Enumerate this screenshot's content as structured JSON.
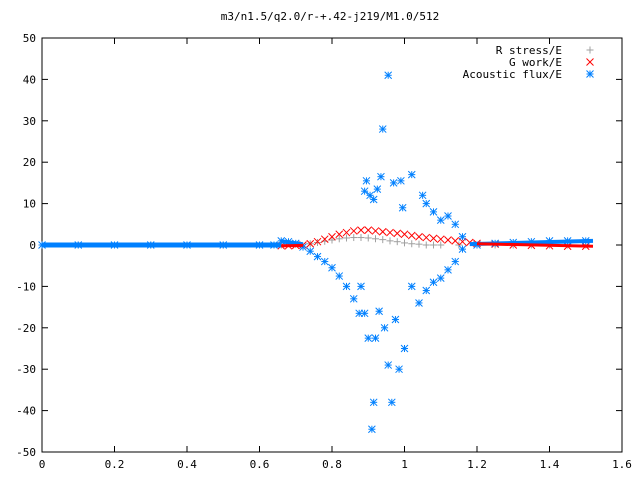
{
  "chart_data": {
    "type": "scatter",
    "title": "m3/n1.5/q2.0/r-+.42-j219/M1.0/512",
    "xlim": [
      0,
      1.6
    ],
    "ylim": [
      -50,
      50
    ],
    "x_ticks": [
      "0",
      "0.2",
      "0.4",
      "0.6",
      "0.8",
      "1",
      "1.2",
      "1.4",
      "1.6"
    ],
    "y_ticks": [
      "50",
      "40",
      "30",
      "20",
      "10",
      "0",
      "-10",
      "-20",
      "-30",
      "-40",
      "-50"
    ],
    "legend_position": "top-right",
    "grid": false,
    "series": [
      {
        "name": "R stress/E",
        "color": "#a0a0a0",
        "marker": "plus",
        "points": [
          [
            0.0,
            0.0
          ],
          [
            0.1,
            0.0
          ],
          [
            0.2,
            0.0
          ],
          [
            0.3,
            0.0
          ],
          [
            0.4,
            0.0
          ],
          [
            0.5,
            0.0
          ],
          [
            0.6,
            0.0
          ],
          [
            0.66,
            0.0
          ],
          [
            0.7,
            0.1
          ],
          [
            0.74,
            0.3
          ],
          [
            0.76,
            0.6
          ],
          [
            0.78,
            0.9
          ],
          [
            0.8,
            1.2
          ],
          [
            0.82,
            1.5
          ],
          [
            0.84,
            1.7
          ],
          [
            0.86,
            1.8
          ],
          [
            0.88,
            1.8
          ],
          [
            0.9,
            1.7
          ],
          [
            0.92,
            1.5
          ],
          [
            0.94,
            1.3
          ],
          [
            0.96,
            1.0
          ],
          [
            0.98,
            0.8
          ],
          [
            1.0,
            0.5
          ],
          [
            1.02,
            0.3
          ],
          [
            1.04,
            0.2
          ],
          [
            1.06,
            0.0
          ],
          [
            1.08,
            0.0
          ],
          [
            1.1,
            0.0
          ],
          [
            1.15,
            0.0
          ],
          [
            1.2,
            0.0
          ],
          [
            1.25,
            0.0
          ],
          [
            1.3,
            0.0
          ],
          [
            1.35,
            0.0
          ],
          [
            1.4,
            0.0
          ],
          [
            1.45,
            0.0
          ],
          [
            1.5,
            0.0
          ]
        ]
      },
      {
        "name": "G work/E",
        "color": "#ff0000",
        "marker": "cross",
        "points": [
          [
            0.66,
            -0.2
          ],
          [
            0.68,
            -0.2
          ],
          [
            0.7,
            -0.1
          ],
          [
            0.72,
            0.0
          ],
          [
            0.74,
            0.3
          ],
          [
            0.76,
            0.8
          ],
          [
            0.78,
            1.4
          ],
          [
            0.8,
            2.0
          ],
          [
            0.82,
            2.6
          ],
          [
            0.84,
            3.0
          ],
          [
            0.86,
            3.4
          ],
          [
            0.88,
            3.6
          ],
          [
            0.9,
            3.6
          ],
          [
            0.92,
            3.4
          ],
          [
            0.94,
            3.2
          ],
          [
            0.96,
            3.0
          ],
          [
            0.98,
            2.8
          ],
          [
            1.0,
            2.6
          ],
          [
            1.02,
            2.3
          ],
          [
            1.04,
            2.0
          ],
          [
            1.06,
            1.8
          ],
          [
            1.08,
            1.6
          ],
          [
            1.1,
            1.4
          ],
          [
            1.12,
            1.2
          ],
          [
            1.14,
            1.0
          ],
          [
            1.16,
            0.8
          ],
          [
            1.18,
            0.6
          ],
          [
            1.2,
            0.4
          ],
          [
            1.25,
            0.2
          ],
          [
            1.3,
            0.0
          ],
          [
            1.35,
            -0.1
          ],
          [
            1.4,
            -0.2
          ],
          [
            1.45,
            -0.3
          ],
          [
            1.5,
            -0.3
          ]
        ]
      },
      {
        "name": "Acoustic flux/E",
        "color": "#0080ff",
        "marker": "star",
        "points": [
          [
            0.0,
            0.0
          ],
          [
            0.1,
            0.0
          ],
          [
            0.2,
            0.0
          ],
          [
            0.3,
            0.0
          ],
          [
            0.4,
            0.0
          ],
          [
            0.5,
            0.0
          ],
          [
            0.6,
            0.0
          ],
          [
            0.64,
            0.0
          ],
          [
            0.66,
            1.0
          ],
          [
            0.68,
            0.8
          ],
          [
            0.7,
            0.4
          ],
          [
            0.72,
            -0.5
          ],
          [
            0.74,
            -1.5
          ],
          [
            0.76,
            -2.8
          ],
          [
            0.78,
            -4.0
          ],
          [
            0.8,
            -5.5
          ],
          [
            0.82,
            -7.5
          ],
          [
            0.84,
            -10.0
          ],
          [
            0.86,
            -13.0
          ],
          [
            0.875,
            -16.5
          ],
          [
            0.89,
            13.0
          ],
          [
            0.895,
            15.5
          ],
          [
            0.905,
            12.0
          ],
          [
            0.915,
            11.0
          ],
          [
            0.925,
            13.5
          ],
          [
            0.935,
            16.5
          ],
          [
            0.94,
            28.0
          ],
          [
            0.955,
            41.0
          ],
          [
            0.97,
            15.0
          ],
          [
            0.99,
            15.5
          ],
          [
            0.995,
            9.0
          ],
          [
            1.02,
            17.0
          ],
          [
            1.05,
            12.0
          ],
          [
            1.06,
            10.0
          ],
          [
            1.08,
            8.0
          ],
          [
            1.1,
            6.0
          ],
          [
            1.12,
            7.0
          ],
          [
            1.14,
            5.0
          ],
          [
            1.16,
            2.0
          ],
          [
            0.88,
            -10.0
          ],
          [
            0.89,
            -16.5
          ],
          [
            0.9,
            -22.5
          ],
          [
            0.91,
            -44.5
          ],
          [
            0.915,
            -38.0
          ],
          [
            0.92,
            -22.5
          ],
          [
            0.93,
            -16.0
          ],
          [
            0.945,
            -20.0
          ],
          [
            0.955,
            -29.0
          ],
          [
            0.965,
            -38.0
          ],
          [
            0.975,
            -18.0
          ],
          [
            0.985,
            -30.0
          ],
          [
            1.0,
            -25.0
          ],
          [
            1.02,
            -10.0
          ],
          [
            1.04,
            -14.0
          ],
          [
            1.06,
            -11.0
          ],
          [
            1.08,
            -9.0
          ],
          [
            1.1,
            -8.0
          ],
          [
            1.12,
            -6.0
          ],
          [
            1.14,
            -4.0
          ],
          [
            1.16,
            -1.0
          ],
          [
            1.2,
            0.0
          ],
          [
            1.25,
            0.4
          ],
          [
            1.3,
            0.6
          ],
          [
            1.35,
            0.8
          ],
          [
            1.4,
            1.0
          ],
          [
            1.45,
            1.0
          ],
          [
            1.5,
            1.0
          ]
        ]
      }
    ]
  }
}
